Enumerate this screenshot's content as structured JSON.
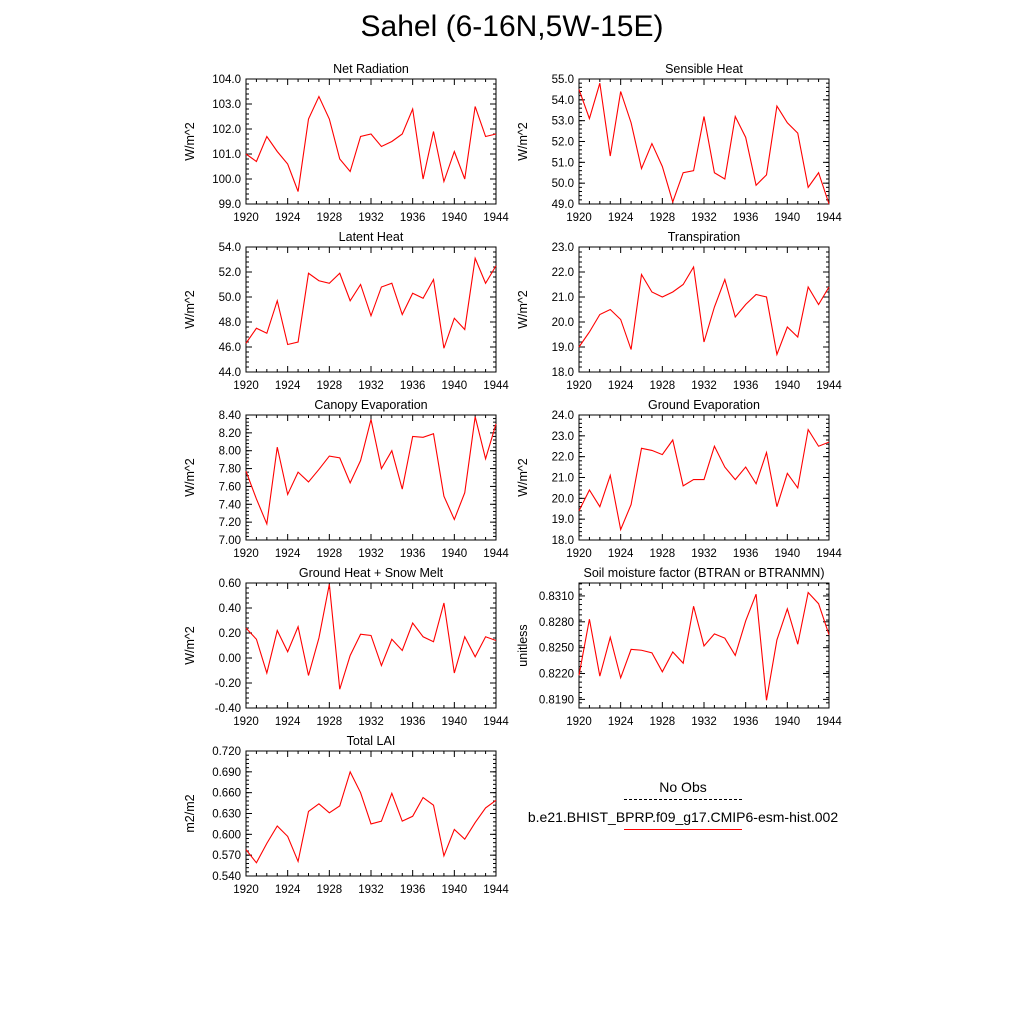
{
  "title": "Sahel (6-16N,5W-15E)",
  "legend": {
    "obs_label": "No Obs",
    "model_label": "b.e21.BHIST_BPRP.f09_g17.CMIP6-esm-hist.002",
    "model_color": "#ff0000",
    "obs_style": "dashed-black"
  },
  "chart_data": [
    {
      "type": "line",
      "title": "Net Radiation",
      "ylabel": "W/m^2",
      "xlim": [
        1920,
        1944
      ],
      "ylim": [
        99.0,
        104.0
      ],
      "xticks": [
        "1920",
        "1924",
        "1928",
        "1932",
        "1936",
        "1940",
        "1944"
      ],
      "yticks": [
        "99.0",
        "100.0",
        "101.0",
        "102.0",
        "103.0",
        "104.0"
      ],
      "x": [
        1920,
        1921,
        1922,
        1923,
        1924,
        1925,
        1926,
        1927,
        1928,
        1929,
        1930,
        1931,
        1932,
        1933,
        1934,
        1935,
        1936,
        1937,
        1938,
        1939,
        1940,
        1941,
        1942,
        1943,
        1944
      ],
      "series": [
        {
          "values": [
            101.0,
            100.7,
            101.7,
            101.1,
            100.6,
            99.5,
            102.4,
            103.3,
            102.4,
            100.8,
            100.3,
            101.7,
            101.8,
            101.3,
            101.5,
            101.8,
            102.8,
            100.0,
            101.9,
            99.9,
            101.1,
            100.0,
            102.9,
            101.7,
            101.8
          ],
          "color": "#ff0000"
        }
      ]
    },
    {
      "type": "line",
      "title": "Sensible Heat",
      "ylabel": "W/m^2",
      "xlim": [
        1920,
        1944
      ],
      "ylim": [
        49.0,
        55.0
      ],
      "xticks": [
        "1920",
        "1924",
        "1928",
        "1932",
        "1936",
        "1940",
        "1944"
      ],
      "yticks": [
        "49.0",
        "50.0",
        "51.0",
        "52.0",
        "53.0",
        "54.0",
        "55.0"
      ],
      "x": [
        1920,
        1921,
        1922,
        1923,
        1924,
        1925,
        1926,
        1927,
        1928,
        1929,
        1930,
        1931,
        1932,
        1933,
        1934,
        1935,
        1936,
        1937,
        1938,
        1939,
        1940,
        1941,
        1942,
        1943,
        1944
      ],
      "series": [
        {
          "values": [
            54.5,
            53.1,
            54.8,
            51.3,
            54.4,
            52.9,
            50.7,
            51.9,
            50.8,
            49.1,
            50.5,
            50.6,
            53.2,
            50.5,
            50.2,
            53.2,
            52.2,
            49.9,
            50.4,
            53.7,
            52.9,
            52.4,
            49.8,
            50.5,
            49.0
          ],
          "color": "#ff0000"
        }
      ]
    },
    {
      "type": "line",
      "title": "Latent Heat",
      "ylabel": "W/m^2",
      "xlim": [
        1920,
        1944
      ],
      "ylim": [
        44.0,
        54.0
      ],
      "xticks": [
        "1920",
        "1924",
        "1928",
        "1932",
        "1936",
        "1940",
        "1944"
      ],
      "yticks": [
        "44.0",
        "46.0",
        "48.0",
        "50.0",
        "52.0",
        "54.0"
      ],
      "x": [
        1920,
        1921,
        1922,
        1923,
        1924,
        1925,
        1926,
        1927,
        1928,
        1929,
        1930,
        1931,
        1932,
        1933,
        1934,
        1935,
        1936,
        1937,
        1938,
        1939,
        1940,
        1941,
        1942,
        1943,
        1944
      ],
      "series": [
        {
          "values": [
            46.3,
            47.5,
            47.1,
            49.7,
            46.2,
            46.4,
            51.9,
            51.3,
            51.1,
            51.9,
            49.7,
            51.0,
            48.5,
            50.8,
            51.1,
            48.6,
            50.3,
            49.9,
            51.4,
            45.9,
            48.3,
            47.4,
            53.1,
            51.1,
            52.5
          ],
          "color": "#ff0000"
        }
      ]
    },
    {
      "type": "line",
      "title": "Transpiration",
      "ylabel": "W/m^2",
      "xlim": [
        1920,
        1944
      ],
      "ylim": [
        18.0,
        23.0
      ],
      "xticks": [
        "1920",
        "1924",
        "1928",
        "1932",
        "1936",
        "1940",
        "1944"
      ],
      "yticks": [
        "18.0",
        "19.0",
        "20.0",
        "21.0",
        "22.0",
        "23.0"
      ],
      "x": [
        1920,
        1921,
        1922,
        1923,
        1924,
        1925,
        1926,
        1927,
        1928,
        1929,
        1930,
        1931,
        1932,
        1933,
        1934,
        1935,
        1936,
        1937,
        1938,
        1939,
        1940,
        1941,
        1942,
        1943,
        1944
      ],
      "series": [
        {
          "values": [
            19.0,
            19.6,
            20.3,
            20.5,
            20.1,
            18.9,
            21.9,
            21.2,
            21.0,
            21.2,
            21.5,
            22.2,
            19.2,
            20.6,
            21.7,
            20.2,
            20.7,
            21.1,
            21.0,
            18.7,
            19.8,
            19.4,
            21.4,
            20.7,
            21.4
          ],
          "color": "#ff0000"
        }
      ]
    },
    {
      "type": "line",
      "title": "Canopy Evaporation",
      "ylabel": "W/m^2",
      "xlim": [
        1920,
        1944
      ],
      "ylim": [
        7.0,
        8.4
      ],
      "xticks": [
        "1920",
        "1924",
        "1928",
        "1932",
        "1936",
        "1940",
        "1944"
      ],
      "yticks": [
        "7.00",
        "7.20",
        "7.40",
        "7.60",
        "7.80",
        "8.00",
        "8.20",
        "8.40"
      ],
      "x": [
        1920,
        1921,
        1922,
        1923,
        1924,
        1925,
        1926,
        1927,
        1928,
        1929,
        1930,
        1931,
        1932,
        1933,
        1934,
        1935,
        1936,
        1937,
        1938,
        1939,
        1940,
        1941,
        1942,
        1943,
        1944
      ],
      "series": [
        {
          "values": [
            7.77,
            7.46,
            7.18,
            8.04,
            7.51,
            7.76,
            7.65,
            7.79,
            7.94,
            7.92,
            7.64,
            7.89,
            8.35,
            7.8,
            8.0,
            7.57,
            8.16,
            8.15,
            8.19,
            7.49,
            7.23,
            7.53,
            8.38,
            7.91,
            8.3
          ],
          "color": "#ff0000"
        }
      ]
    },
    {
      "type": "line",
      "title": "Ground Evaporation",
      "ylabel": "W/m^2",
      "xlim": [
        1920,
        1944
      ],
      "ylim": [
        18.0,
        24.0
      ],
      "xticks": [
        "1920",
        "1924",
        "1928",
        "1932",
        "1936",
        "1940",
        "1944"
      ],
      "yticks": [
        "18.0",
        "19.0",
        "20.0",
        "21.0",
        "22.0",
        "23.0",
        "24.0"
      ],
      "x": [
        1920,
        1921,
        1922,
        1923,
        1924,
        1925,
        1926,
        1927,
        1928,
        1929,
        1930,
        1931,
        1932,
        1933,
        1934,
        1935,
        1936,
        1937,
        1938,
        1939,
        1940,
        1941,
        1942,
        1943,
        1944
      ],
      "series": [
        {
          "values": [
            19.4,
            20.4,
            19.6,
            21.1,
            18.5,
            19.7,
            22.4,
            22.3,
            22.1,
            22.8,
            20.6,
            20.9,
            20.9,
            22.5,
            21.5,
            20.9,
            21.5,
            20.7,
            22.2,
            19.6,
            21.2,
            20.5,
            23.3,
            22.5,
            22.7
          ],
          "color": "#ff0000"
        }
      ]
    },
    {
      "type": "line",
      "title": "Ground Heat + Snow Melt",
      "ylabel": "W/m^2",
      "xlim": [
        1920,
        1944
      ],
      "ylim": [
        -0.4,
        0.6
      ],
      "xticks": [
        "1920",
        "1924",
        "1928",
        "1932",
        "1936",
        "1940",
        "1944"
      ],
      "yticks": [
        "-0.40",
        "-0.20",
        "0.00",
        "0.20",
        "0.40",
        "0.60"
      ],
      "x": [
        1920,
        1921,
        1922,
        1923,
        1924,
        1925,
        1926,
        1927,
        1928,
        1929,
        1930,
        1931,
        1932,
        1933,
        1934,
        1935,
        1936,
        1937,
        1938,
        1939,
        1940,
        1941,
        1942,
        1943,
        1944
      ],
      "series": [
        {
          "values": [
            0.24,
            0.15,
            -0.12,
            0.22,
            0.05,
            0.25,
            -0.14,
            0.16,
            0.59,
            -0.25,
            0.02,
            0.19,
            0.18,
            -0.06,
            0.15,
            0.06,
            0.28,
            0.17,
            0.13,
            0.44,
            -0.12,
            0.17,
            0.01,
            0.17,
            0.14
          ],
          "color": "#ff0000"
        }
      ]
    },
    {
      "type": "line",
      "title": "Soil moisture factor (BTRAN or BTRANMN)",
      "ylabel": "unitless",
      "xlim": [
        1920,
        1944
      ],
      "ylim": [
        0.818,
        0.8325
      ],
      "xticks": [
        "1920",
        "1924",
        "1928",
        "1932",
        "1936",
        "1940",
        "1944"
      ],
      "yticks": [
        "0.8190",
        "0.8220",
        "0.8250",
        "0.8280",
        "0.8310"
      ],
      "x": [
        1920,
        1921,
        1922,
        1923,
        1924,
        1925,
        1926,
        1927,
        1928,
        1929,
        1930,
        1931,
        1932,
        1933,
        1934,
        1935,
        1936,
        1937,
        1938,
        1939,
        1940,
        1941,
        1942,
        1943,
        1944
      ],
      "series": [
        {
          "values": [
            0.8218,
            0.8283,
            0.8217,
            0.8262,
            0.8215,
            0.8248,
            0.8247,
            0.8244,
            0.8222,
            0.8245,
            0.8232,
            0.8298,
            0.8252,
            0.8266,
            0.8261,
            0.8241,
            0.8281,
            0.8312,
            0.8189,
            0.8259,
            0.8295,
            0.8254,
            0.8314,
            0.8301,
            0.8265
          ],
          "color": "#ff0000"
        }
      ]
    },
    {
      "type": "line",
      "title": "Total LAI",
      "ylabel": "m2/m2",
      "xlim": [
        1920,
        1944
      ],
      "ylim": [
        0.54,
        0.72
      ],
      "xticks": [
        "1920",
        "1924",
        "1928",
        "1932",
        "1936",
        "1940",
        "1944"
      ],
      "yticks": [
        "0.540",
        "0.570",
        "0.600",
        "0.630",
        "0.660",
        "0.690",
        "0.720"
      ],
      "x": [
        1920,
        1921,
        1922,
        1923,
        1924,
        1925,
        1926,
        1927,
        1928,
        1929,
        1930,
        1931,
        1932,
        1933,
        1934,
        1935,
        1936,
        1937,
        1938,
        1939,
        1940,
        1941,
        1942,
        1943,
        1944
      ],
      "series": [
        {
          "values": [
            0.578,
            0.559,
            0.587,
            0.612,
            0.597,
            0.561,
            0.633,
            0.644,
            0.631,
            0.641,
            0.69,
            0.66,
            0.615,
            0.619,
            0.659,
            0.619,
            0.626,
            0.653,
            0.642,
            0.569,
            0.607,
            0.593,
            0.617,
            0.638,
            0.649
          ],
          "color": "#ff0000"
        }
      ]
    }
  ]
}
